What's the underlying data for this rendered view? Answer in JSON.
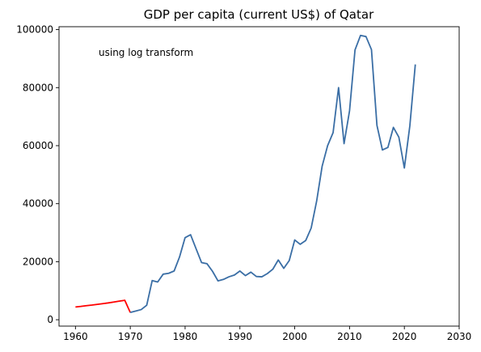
{
  "chart_data": {
    "type": "line",
    "title": "GDP per capita (current US$) of Qatar",
    "xlabel": "",
    "ylabel": "",
    "annotation": "using log transform",
    "xlim": [
      1957,
      2030
    ],
    "ylim": [
      -2200,
      101000
    ],
    "xticks": [
      1960,
      1970,
      1980,
      1990,
      2000,
      2010,
      2020,
      2030
    ],
    "yticks": [
      0,
      20000,
      40000,
      60000,
      80000,
      100000
    ],
    "grid": false,
    "legend": "none",
    "series": [
      {
        "color": "#ff0000",
        "x": [
          1960,
          1961,
          1962,
          1963,
          1964,
          1965,
          1966,
          1967,
          1968,
          1969,
          1970
        ],
        "y": [
          4400,
          4600,
          4850,
          5050,
          5300,
          5550,
          5800,
          6100,
          6400,
          6700,
          2500
        ]
      },
      {
        "color": "#3a6ea5",
        "x": [
          1970,
          1971,
          1972,
          1973,
          1974,
          1975,
          1976,
          1977,
          1978,
          1979,
          1980,
          1981,
          1982,
          1983,
          1984,
          1985,
          1986,
          1987,
          1988,
          1989,
          1990,
          1991,
          1992,
          1993,
          1994,
          1995,
          1996,
          1997,
          1998,
          1999,
          2000,
          2001,
          2002,
          2003,
          2004,
          2005,
          2006,
          2007,
          2008,
          2009,
          2010,
          2011,
          2012,
          2013,
          2014,
          2015,
          2016,
          2017,
          2018,
          2019,
          2020,
          2021,
          2022
        ],
        "y": [
          2500,
          3000,
          3500,
          5000,
          13500,
          13000,
          15700,
          16000,
          16800,
          21700,
          28300,
          29300,
          24500,
          19700,
          19300,
          16700,
          13400,
          13900,
          14800,
          15400,
          16800,
          15200,
          16400,
          14900,
          14800,
          15900,
          17400,
          20600,
          17700,
          20400,
          27500,
          26000,
          27300,
          31600,
          40900,
          52900,
          60000,
          64500,
          80000,
          60700,
          72000,
          93000,
          98000,
          97600,
          93100,
          67000,
          58500,
          59400,
          66300,
          62900,
          52300,
          66800,
          88000
        ]
      }
    ]
  }
}
